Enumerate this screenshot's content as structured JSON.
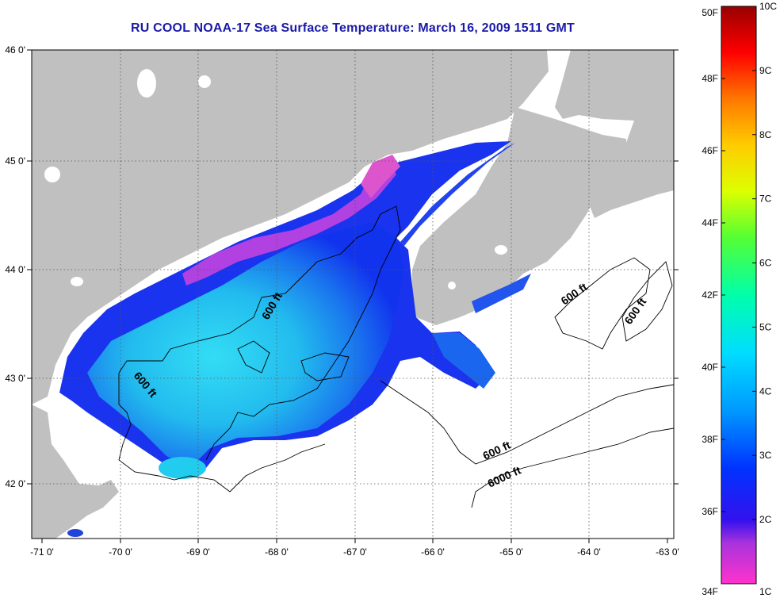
{
  "title": "RU COOL  NOAA-17  Sea Surface Temperature:  March 16, 2009 1511 GMT",
  "map": {
    "lat_labels": [
      "46 0'",
      "45 0'",
      "44 0'",
      "43 0'",
      "42 0'"
    ],
    "lon_labels": [
      "-71 0'",
      "-70 0'",
      "-69 0'",
      "-68 0'",
      "-67 0'",
      "-66 0'",
      "-65 0'",
      "-64 0'",
      "-63 0'"
    ],
    "contour_labels": [
      "600 ft",
      "600 ft",
      "600 ft",
      "600 ft",
      "600 ft",
      "6000 ft"
    ],
    "colors": {
      "land": "#c0c0c0",
      "ocean_no_data": "#ffffff",
      "graticule": "#555555"
    }
  },
  "colorbar": {
    "fahrenheit_labels": [
      "50F",
      "48F",
      "46F",
      "44F",
      "42F",
      "40F",
      "38F",
      "36F",
      "34F"
    ],
    "celsius_labels": [
      "10C",
      "9C",
      "8C",
      "7C",
      "6C",
      "5C",
      "4C",
      "3C",
      "2C",
      "1C"
    ],
    "range_celsius": [
      1,
      10
    ]
  }
}
